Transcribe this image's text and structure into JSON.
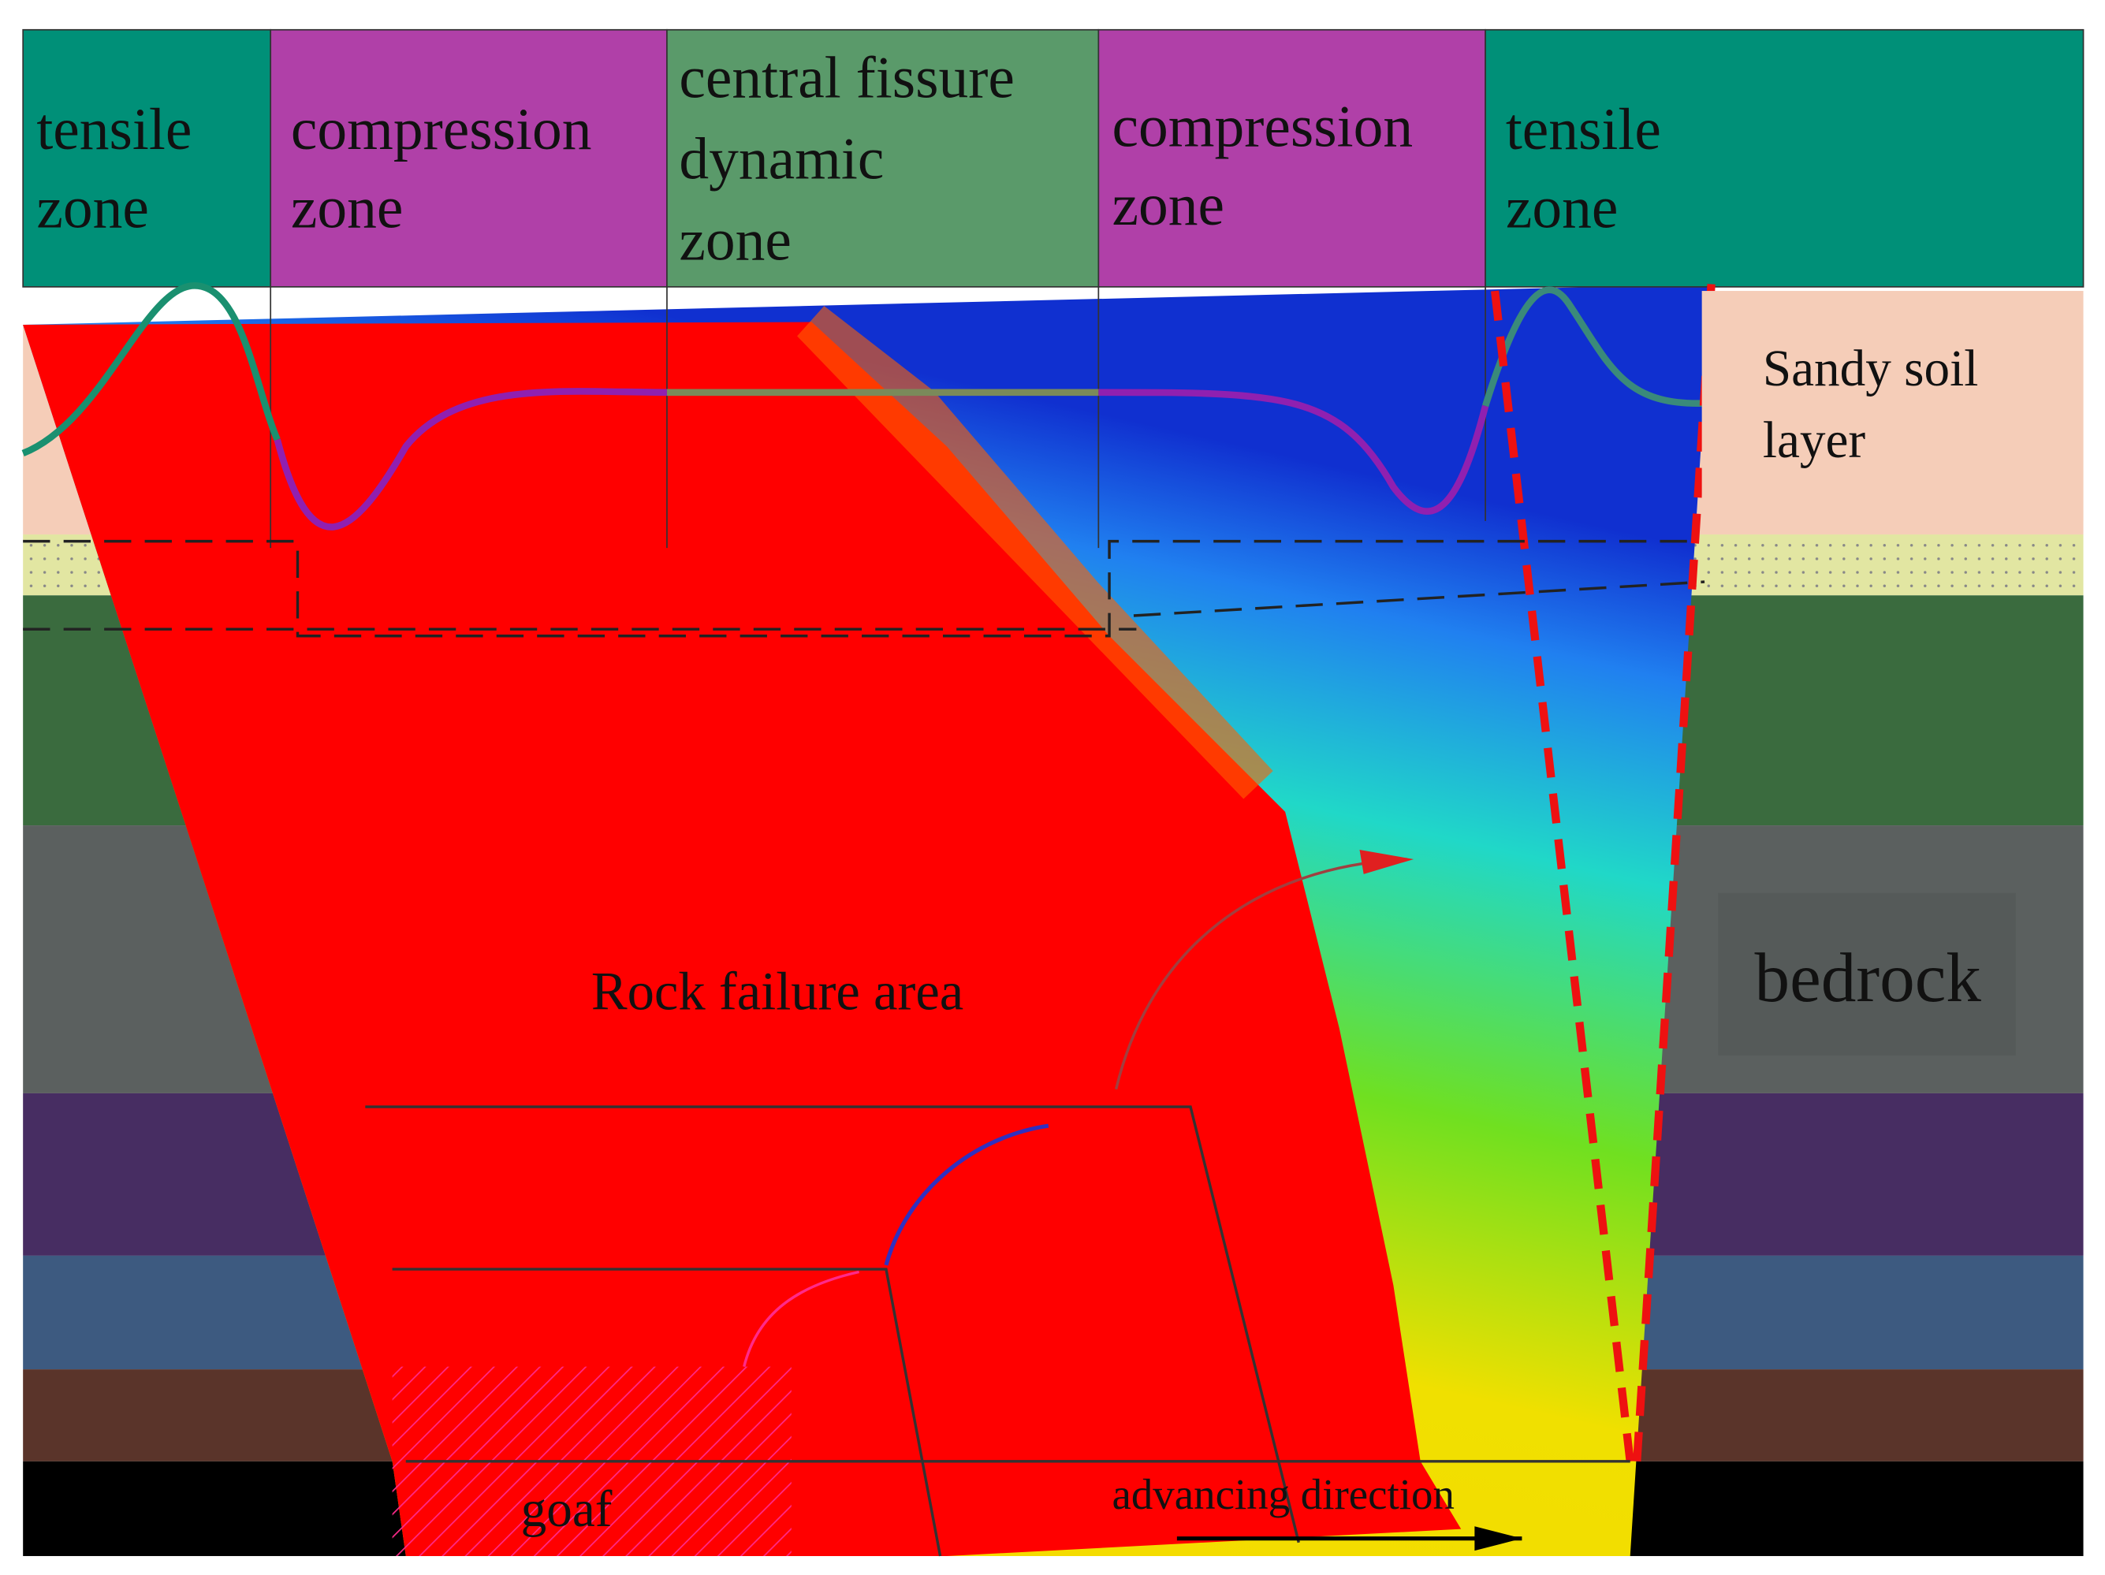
{
  "zones": [
    {
      "lines": [
        "tensile",
        "zone"
      ]
    },
    {
      "lines": [
        "compression",
        "zone"
      ]
    },
    {
      "lines": [
        "central fissure",
        "dynamic",
        "zone"
      ]
    },
    {
      "lines": [
        "compression",
        "zone"
      ]
    },
    {
      "lines": [
        "tensile",
        "zone"
      ]
    }
  ],
  "layers": {
    "sandy_soil": [
      "Sandy soil",
      "layer"
    ],
    "bedrock": "bedrock"
  },
  "labels": {
    "failure": "Rock failure area",
    "goaf": "goaf",
    "advancing": "advancing direction"
  }
}
